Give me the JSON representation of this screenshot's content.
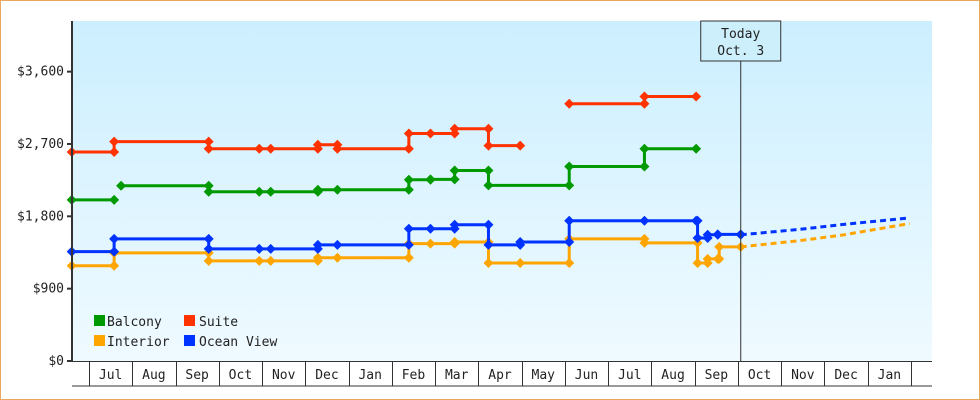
{
  "chart_data": {
    "type": "line",
    "step": true,
    "title": "",
    "xlabel": "",
    "ylabel": "",
    "x_start": "06-19",
    "x_end": "01-31",
    "ylim": [
      0,
      4230
    ],
    "y_ticks": [
      0,
      900,
      1800,
      2700,
      3600
    ],
    "y_tick_labels": [
      "$0",
      "$900",
      "$1,800",
      "$2,700",
      "$3,600"
    ],
    "x_tick_labels": [
      "Jul",
      "Aug",
      "Sep",
      "Oct",
      "Nov",
      "Dec",
      "Jan",
      "Feb",
      "Mar",
      "Apr",
      "May",
      "Jun",
      "Jul",
      "Aug",
      "Sep",
      "Oct",
      "Nov",
      "Dec",
      "Jan"
    ],
    "grid": false,
    "legend_position": "bottom-left",
    "today": {
      "line1": "Today",
      "line2": "Oct. 3",
      "date": "10-03"
    },
    "series": [
      {
        "name": "Balcony",
        "color": "#009900",
        "points": [
          [
            "06-19",
            2005
          ],
          [
            "07-19",
            2005
          ],
          null,
          [
            "07-24",
            2180
          ],
          [
            "09-24",
            2105
          ],
          [
            "10-30",
            2105
          ],
          [
            "11-07",
            2105
          ],
          [
            "12-10",
            2130
          ],
          [
            "12-24",
            2130
          ],
          [
            "02-12",
            2255
          ],
          [
            "02-26",
            2260
          ],
          [
            "03-15",
            2370
          ],
          [
            "04-08",
            2185
          ],
          [
            "06-04",
            2420
          ],
          [
            "07-27",
            2640
          ],
          [
            "09-02",
            2640
          ]
        ]
      },
      {
        "name": "Suite",
        "color": "#ff3300",
        "points": [
          [
            "06-19",
            2600
          ],
          [
            "07-19",
            2730
          ],
          [
            "09-24",
            2640
          ],
          [
            "10-30",
            2640
          ],
          [
            "11-07",
            2640
          ],
          [
            "12-10",
            2690
          ],
          [
            "12-24",
            2640
          ],
          [
            "02-12",
            2830
          ],
          [
            "02-26",
            2830
          ],
          [
            "03-15",
            2890
          ],
          [
            "04-08",
            2680
          ],
          [
            "04-30",
            2680
          ],
          null,
          [
            "06-04",
            3200
          ],
          [
            "07-27",
            3290
          ],
          [
            "09-02",
            3290
          ]
        ]
      },
      {
        "name": "Interior",
        "color": "#ffa500",
        "points": [
          [
            "06-19",
            1185
          ],
          [
            "07-19",
            1345
          ],
          [
            "09-24",
            1245
          ],
          [
            "10-30",
            1245
          ],
          [
            "11-07",
            1245
          ],
          [
            "12-10",
            1285
          ],
          [
            "12-24",
            1285
          ],
          [
            "02-12",
            1460
          ],
          [
            "02-26",
            1460
          ],
          [
            "03-15",
            1480
          ],
          [
            "04-08",
            1220
          ],
          [
            "04-30",
            1220
          ],
          [
            "06-04",
            1520
          ],
          [
            "07-27",
            1470
          ],
          [
            "09-03",
            1220
          ],
          [
            "09-10",
            1270
          ],
          [
            "09-17",
            1270
          ],
          [
            "09-18",
            1420
          ],
          [
            "10-03",
            1420
          ]
        ],
        "forecast": [
          [
            "10-03",
            1420
          ],
          [
            "11-15",
            1500
          ],
          [
            "12-15",
            1570
          ],
          [
            "01-31",
            1710
          ]
        ]
      },
      {
        "name": "Ocean View",
        "color": "#0033ff",
        "points": [
          [
            "06-19",
            1360
          ],
          [
            "07-19",
            1520
          ],
          [
            "09-24",
            1395
          ],
          [
            "10-30",
            1395
          ],
          [
            "11-07",
            1395
          ],
          [
            "12-10",
            1445
          ],
          [
            "12-24",
            1445
          ],
          [
            "02-12",
            1645
          ],
          [
            "02-26",
            1645
          ],
          [
            "03-15",
            1695
          ],
          [
            "04-08",
            1445
          ],
          [
            "04-30",
            1480
          ],
          [
            "06-04",
            1745
          ],
          [
            "07-27",
            1745
          ],
          [
            "09-02",
            1745
          ],
          [
            "09-03",
            1530
          ],
          [
            "09-10",
            1570
          ],
          [
            "09-17",
            1575
          ],
          [
            "10-03",
            1570
          ]
        ],
        "forecast": [
          [
            "10-03",
            1570
          ],
          [
            "11-15",
            1640
          ],
          [
            "12-15",
            1700
          ],
          [
            "01-31",
            1780
          ]
        ]
      }
    ]
  }
}
